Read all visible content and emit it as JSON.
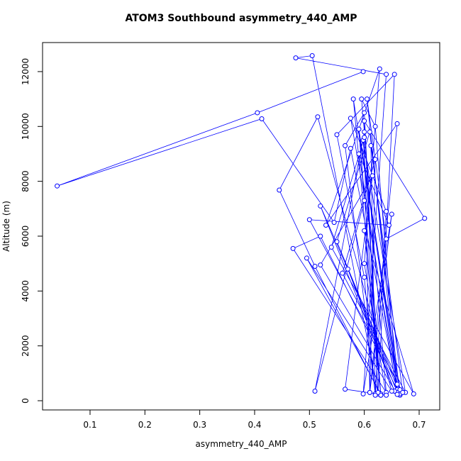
{
  "chart_data": {
    "type": "line",
    "title": "ATOM3 Southbound asymmetry_440_AMP",
    "x_label": "asymmetry_440_AMP",
    "y_label": "Altitude (m)",
    "color": "#0000ff",
    "x": [
      0.598,
      0.405,
      0.04,
      0.413,
      0.545,
      0.575,
      0.66,
      0.62,
      0.595,
      0.64,
      0.47,
      0.52,
      0.665,
      0.61,
      0.55,
      0.665,
      0.58,
      0.63,
      0.598,
      0.675,
      0.56,
      0.62,
      0.61,
      0.65,
      0.598,
      0.64,
      0.475,
      0.505,
      0.625,
      0.6,
      0.71,
      0.64,
      0.605,
      0.66,
      0.57,
      0.655,
      0.52,
      0.665,
      0.59,
      0.63,
      0.495,
      0.65,
      0.515,
      0.445,
      0.51,
      0.63,
      0.6,
      0.69,
      0.54,
      0.6,
      0.61,
      0.66,
      0.53,
      0.628,
      0.6,
      0.64,
      0.565,
      0.615,
      0.52,
      0.66,
      0.59,
      0.645,
      0.5,
      0.67,
      0.612,
      0.62,
      0.565,
      0.6,
      0.625,
      0.655,
      0.55,
      0.6,
      0.62,
      0.64,
      0.575,
      0.66,
      0.59,
      0.6,
      0.51,
      0.6
    ],
    "values": [
      12000,
      10500,
      7830,
      10280,
      6500,
      9200,
      400,
      10000,
      11000,
      300,
      5550,
      6000,
      200,
      9800,
      5800,
      250,
      11000,
      200,
      9500,
      300,
      4650,
      8800,
      300,
      6800,
      250,
      11900,
      12500,
      12580,
      250,
      10200,
      6650,
      5900,
      11000,
      300,
      4800,
      350,
      7100,
      400,
      9900,
      250,
      5200,
      350,
      10350,
      7680,
      4900,
      200,
      6200,
      250,
      5600,
      9600,
      300,
      10100,
      6400,
      12100,
      5000,
      200,
      420,
      8200,
      4950,
      230,
      9000,
      6400,
      6600,
      300,
      9300,
      250,
      9300,
      10500,
      300,
      11900,
      9700,
      4500,
      200,
      6900,
      10300,
      600,
      9900,
      7300,
      350,
      9800
    ],
    "xlim": [
      0.0134,
      0.7375
    ],
    "ylim": [
      -336,
      13059
    ],
    "xticks": [
      0.1,
      0.2,
      0.3,
      0.4,
      0.5,
      0.6,
      0.7
    ],
    "yticks": [
      0,
      2000,
      4000,
      6000,
      8000,
      10000,
      12000
    ]
  }
}
